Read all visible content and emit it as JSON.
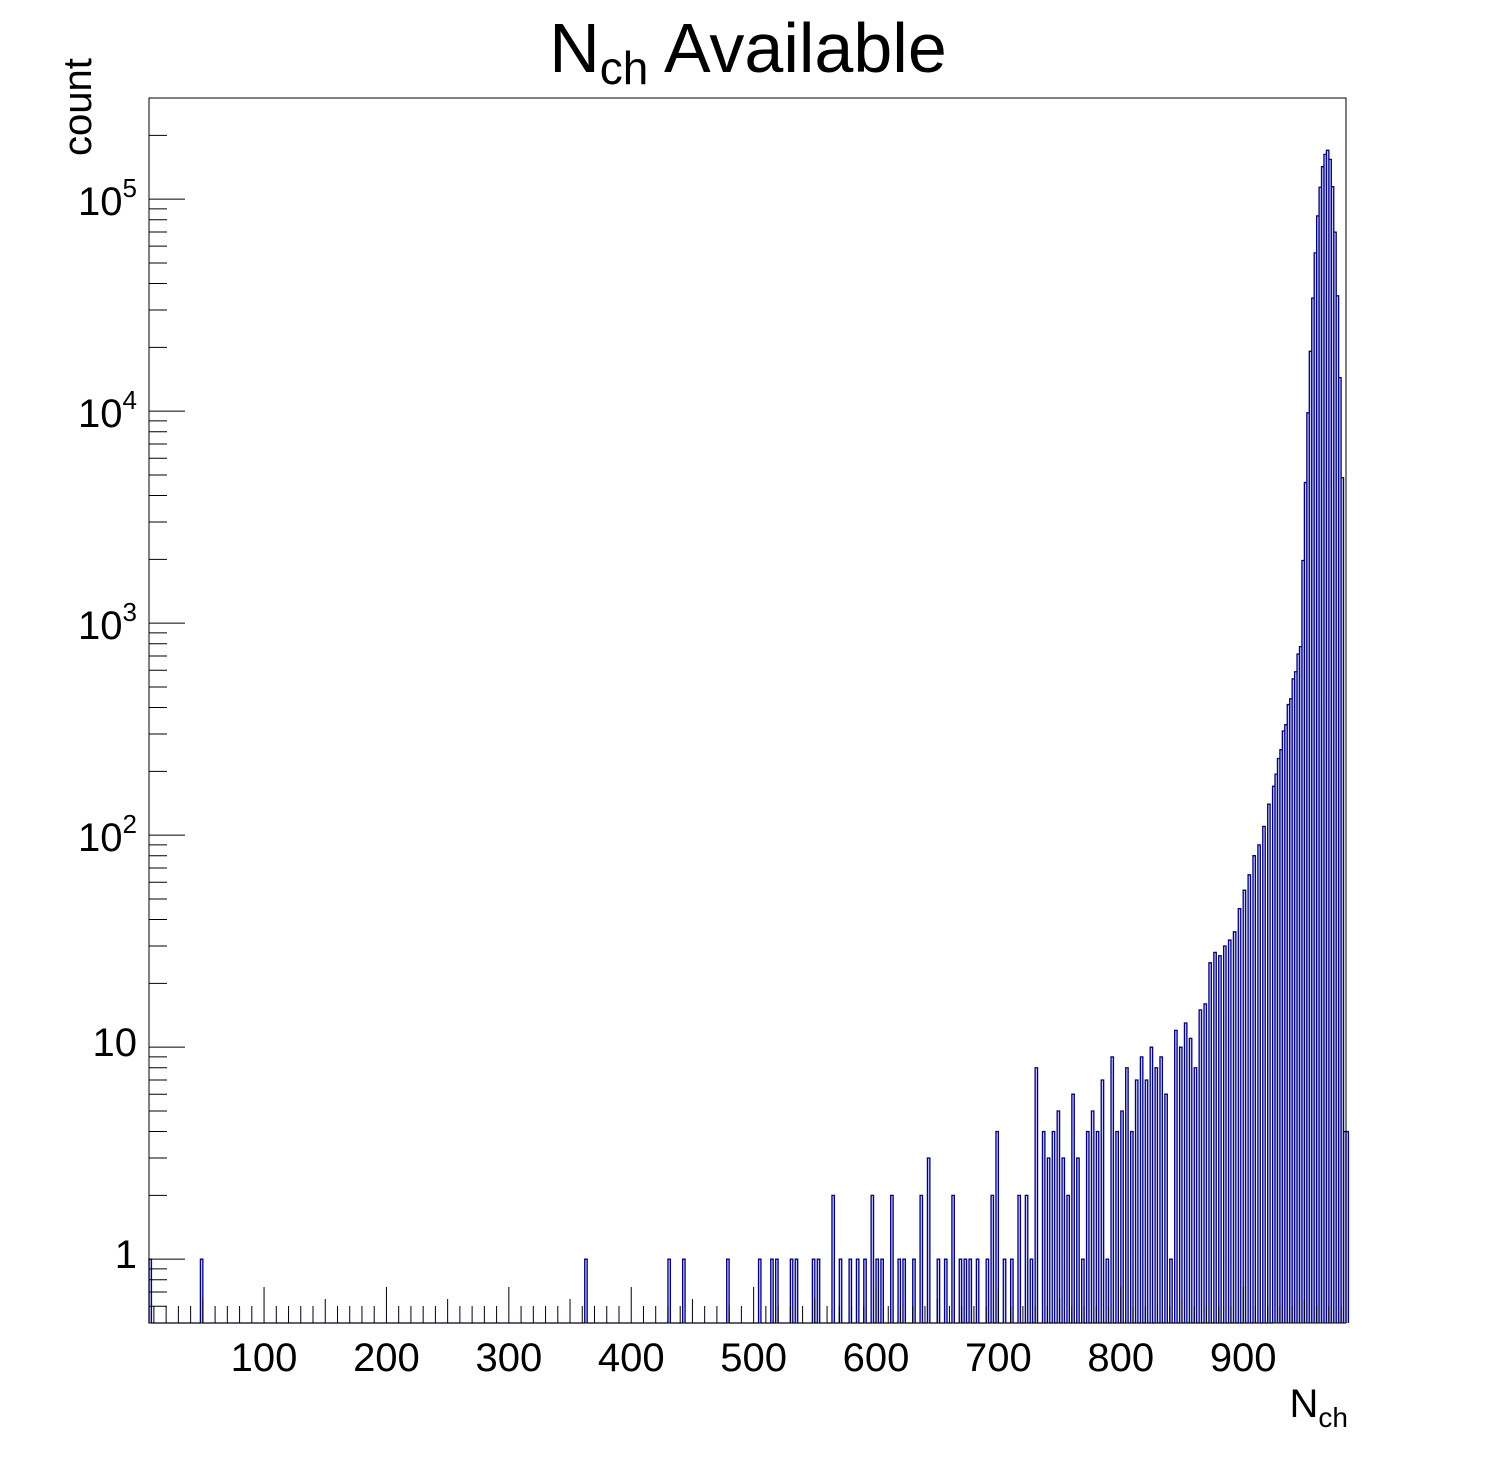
{
  "chart_data": {
    "type": "histogram",
    "title": "N",
    "title_sub": "ch",
    "title_rest": " Available",
    "xlabel": "N",
    "xlabel_sub": "ch",
    "ylabel": "count",
    "xlim": [
      6,
      984
    ],
    "ylim": [
      0.5,
      300000
    ],
    "yscale": "log",
    "grid": false,
    "bin_width": 2,
    "colors": {
      "fill": "#ccccf8",
      "line": "#000080"
    },
    "x_ticks": [
      "100",
      "200",
      "300",
      "400",
      "500",
      "600",
      "700",
      "800",
      "900"
    ],
    "y_ticks": [
      {
        "base": "1",
        "exp": ""
      },
      {
        "base": "10",
        "exp": ""
      },
      {
        "base": "10",
        "exp": "2"
      },
      {
        "base": "10",
        "exp": "3"
      },
      {
        "base": "10",
        "exp": "4"
      },
      {
        "base": "10",
        "exp": "5"
      }
    ],
    "sparse_bins": [
      [
        6,
        1
      ],
      [
        48,
        1
      ],
      [
        362,
        1
      ],
      [
        430,
        1
      ],
      [
        442,
        1
      ],
      [
        478,
        1
      ],
      [
        504,
        1
      ],
      [
        514,
        1
      ],
      [
        518,
        1
      ],
      [
        530,
        1
      ],
      [
        534,
        1
      ],
      [
        548,
        1
      ],
      [
        552,
        1
      ],
      [
        564,
        2
      ],
      [
        570,
        1
      ],
      [
        578,
        1
      ],
      [
        584,
        1
      ],
      [
        590,
        1
      ],
      [
        596,
        2
      ],
      [
        600,
        1
      ],
      [
        604,
        1
      ],
      [
        612,
        2
      ],
      [
        618,
        1
      ],
      [
        622,
        1
      ],
      [
        630,
        1
      ],
      [
        636,
        2
      ],
      [
        642,
        3
      ],
      [
        650,
        1
      ],
      [
        656,
        1
      ],
      [
        662,
        2
      ],
      [
        668,
        1
      ],
      [
        672,
        1
      ],
      [
        676,
        1
      ],
      [
        682,
        1
      ],
      [
        690,
        1
      ],
      [
        694,
        2
      ],
      [
        698,
        4
      ],
      [
        704,
        1
      ],
      [
        710,
        1
      ],
      [
        716,
        2
      ],
      [
        722,
        2
      ],
      [
        726,
        1
      ],
      [
        730,
        8
      ],
      [
        736,
        4
      ],
      [
        740,
        3
      ],
      [
        744,
        4
      ],
      [
        748,
        5
      ],
      [
        752,
        3
      ],
      [
        756,
        2
      ],
      [
        760,
        6
      ],
      [
        764,
        3
      ],
      [
        768,
        1
      ],
      [
        772,
        4
      ],
      [
        776,
        5
      ],
      [
        780,
        4
      ],
      [
        784,
        7
      ],
      [
        788,
        1
      ],
      [
        792,
        9
      ],
      [
        796,
        4
      ],
      [
        800,
        5
      ],
      [
        804,
        8
      ],
      [
        808,
        4
      ],
      [
        812,
        7
      ],
      [
        816,
        9
      ],
      [
        820,
        7
      ],
      [
        824,
        10
      ],
      [
        828,
        8
      ],
      [
        832,
        9
      ],
      [
        836,
        6
      ],
      [
        840,
        1
      ],
      [
        844,
        12
      ],
      [
        848,
        10
      ],
      [
        852,
        13
      ],
      [
        856,
        11
      ],
      [
        860,
        8
      ],
      [
        864,
        15
      ],
      [
        868,
        16
      ],
      [
        872,
        25
      ],
      [
        876,
        28
      ],
      [
        880,
        27
      ],
      [
        884,
        30
      ],
      [
        888,
        32
      ],
      [
        892,
        35
      ],
      [
        896,
        45
      ],
      [
        900,
        55
      ],
      [
        904,
        65
      ],
      [
        908,
        80
      ],
      [
        912,
        90
      ],
      [
        916,
        110
      ],
      [
        920,
        140
      ],
      [
        924,
        170
      ]
    ],
    "peak": {
      "x": 968,
      "count": 170000,
      "left_sigma": 6.7,
      "right_sigma": 4.5,
      "x_end": 984
    },
    "tail": {
      "x0": 924,
      "count0": 170,
      "x1": 944,
      "count1": 700
    }
  }
}
